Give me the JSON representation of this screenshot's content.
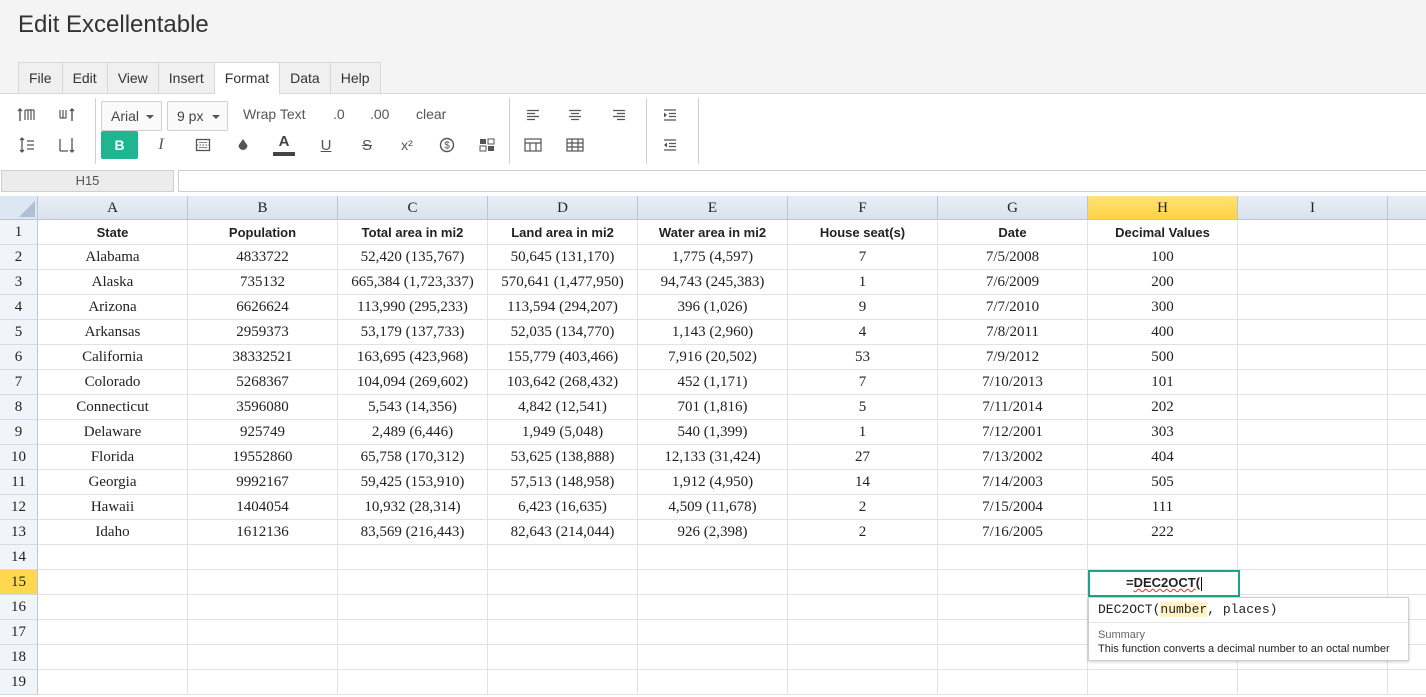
{
  "window": {
    "title": "Edit Excellentable"
  },
  "menu": {
    "tabs": [
      {
        "label": "File"
      },
      {
        "label": "Edit"
      },
      {
        "label": "View"
      },
      {
        "label": "Insert"
      },
      {
        "label": "Format"
      },
      {
        "label": "Data"
      },
      {
        "label": "Help"
      }
    ],
    "active": "Format"
  },
  "toolbar": {
    "font_family": "Arial",
    "font_size": "9 px",
    "wrap_text": "Wrap Text",
    "decrease_decimal": ".0",
    "increase_decimal": ".00",
    "clear": "clear",
    "bold": "B",
    "italic": "I",
    "underline": "U",
    "strikethrough": "S",
    "superscript": "x²",
    "text_color_glyph": "A"
  },
  "formula_bar": {
    "cell_ref": "H15",
    "value": ""
  },
  "grid": {
    "columns": [
      "A",
      "B",
      "C",
      "D",
      "E",
      "F",
      "G",
      "H",
      "I"
    ],
    "selected_column": "H",
    "rows": [
      "1",
      "2",
      "3",
      "4",
      "5",
      "6",
      "7",
      "8",
      "9",
      "10",
      "11",
      "12",
      "13",
      "14",
      "15",
      "16",
      "17",
      "18",
      "19"
    ],
    "selected_row": "15",
    "data": [
      [
        "State",
        "Population",
        "Total area in mi2",
        "Land area in mi2",
        "Water area in mi2",
        "House seat(s)",
        "Date",
        "Decimal Values",
        ""
      ],
      [
        "Alabama",
        "4833722",
        "52,420 (135,767)",
        "50,645 (131,170)",
        "1,775 (4,597)",
        "7",
        "7/5/2008",
        "100",
        ""
      ],
      [
        "Alaska",
        "735132",
        "665,384 (1,723,337)",
        "570,641 (1,477,950)",
        "94,743 (245,383)",
        "1",
        "7/6/2009",
        "200",
        ""
      ],
      [
        "Arizona",
        "6626624",
        "113,990 (295,233)",
        "113,594 (294,207)",
        "396 (1,026)",
        "9",
        "7/7/2010",
        "300",
        ""
      ],
      [
        "Arkansas",
        "2959373",
        "53,179 (137,733)",
        "52,035 (134,770)",
        "1,143 (2,960)",
        "4",
        "7/8/2011",
        "400",
        ""
      ],
      [
        "California",
        "38332521",
        "163,695 (423,968)",
        "155,779 (403,466)",
        "7,916 (20,502)",
        "53",
        "7/9/2012",
        "500",
        ""
      ],
      [
        "Colorado",
        "5268367",
        "104,094 (269,602)",
        "103,642 (268,432)",
        "452 (1,171)",
        "7",
        "7/10/2013",
        "101",
        ""
      ],
      [
        "Connecticut",
        "3596080",
        "5,543 (14,356)",
        "4,842 (12,541)",
        "701 (1,816)",
        "5",
        "7/11/2014",
        "202",
        ""
      ],
      [
        "Delaware",
        "925749",
        "2,489 (6,446)",
        "1,949 (5,048)",
        "540 (1,399)",
        "1",
        "7/12/2001",
        "303",
        ""
      ],
      [
        "Florida",
        "19552860",
        "65,758 (170,312)",
        "53,625 (138,888)",
        "12,133 (31,424)",
        "27",
        "7/13/2002",
        "404",
        ""
      ],
      [
        "Georgia",
        "9992167",
        "59,425 (153,910)",
        "57,513 (148,958)",
        "1,912 (4,950)",
        "14",
        "7/14/2003",
        "505",
        ""
      ],
      [
        "Hawaii",
        "1404054",
        "10,932 (28,314)",
        "6,423 (16,635)",
        "4,509 (11,678)",
        "2",
        "7/15/2004",
        "111",
        ""
      ],
      [
        "Idaho",
        "1612136",
        "83,569 (216,443)",
        "82,643 (214,044)",
        "926 (2,398)",
        "2",
        "7/16/2005",
        "222",
        ""
      ]
    ]
  },
  "editing": {
    "cell": "H15",
    "prefix": "=",
    "function_name": "DEC2OCT",
    "suffix": "("
  },
  "autocomplete": {
    "function": "DEC2OCT(",
    "param1": "number",
    "rest": ", places)",
    "summary_label": "Summary",
    "description": "This function converts a decimal number to an octal number"
  }
}
